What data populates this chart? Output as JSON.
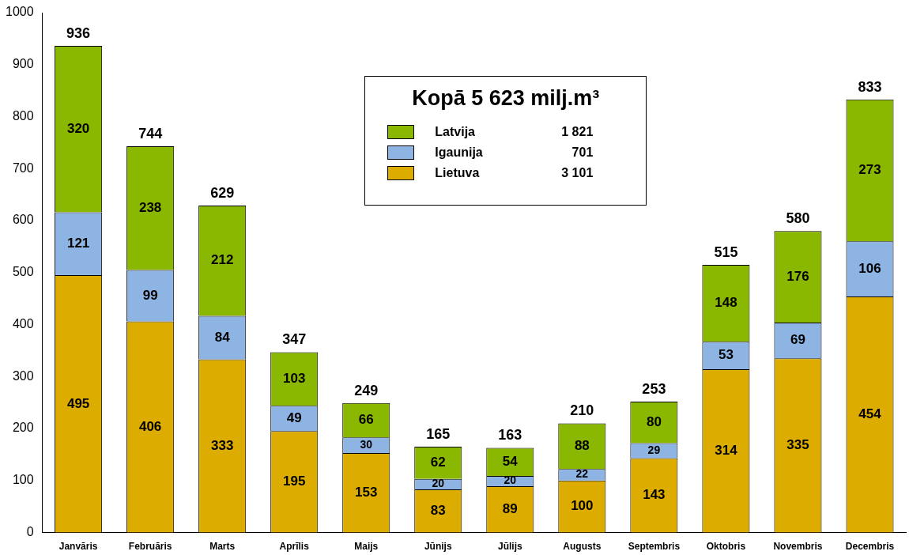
{
  "chart_data": {
    "type": "bar",
    "stacked": true,
    "legend_title": "Kopā 5 623 milj.m³",
    "legend": "top",
    "grid": false,
    "data_labels": true,
    "categories": [
      "Janvāris",
      "Februāris",
      "Marts",
      "Aprīlis",
      "Maijs",
      "Jūnijs",
      "Jūlijs",
      "Augusts",
      "Septembris",
      "Oktobris",
      "Novembris",
      "Decembris"
    ],
    "ylim": [
      0,
      1000
    ],
    "yticks": [
      0,
      100,
      200,
      300,
      400,
      500,
      600,
      700,
      800,
      900,
      1000
    ],
    "series": [
      {
        "name": "Lietuva",
        "color": "#ddac00",
        "values": [
          495,
          406,
          333,
          195,
          153,
          83,
          89,
          100,
          143,
          314,
          335,
          454
        ]
      },
      {
        "name": "Igaunija",
        "color": "#8db4e2",
        "values": [
          121,
          99,
          84,
          49,
          30,
          20,
          20,
          22,
          29,
          53,
          69,
          106
        ]
      },
      {
        "name": "Latvija",
        "color": "#8ab800",
        "values": [
          320,
          238,
          212,
          103,
          66,
          62,
          54,
          88,
          80,
          148,
          176,
          273
        ]
      }
    ],
    "annotations": [
      "3 101",
      "701",
      "1 821"
    ],
    "totals": [
      "936",
      "744",
      "629",
      "347",
      "249",
      "165",
      "163",
      "210",
      "253",
      "515",
      "580",
      "833"
    ]
  }
}
